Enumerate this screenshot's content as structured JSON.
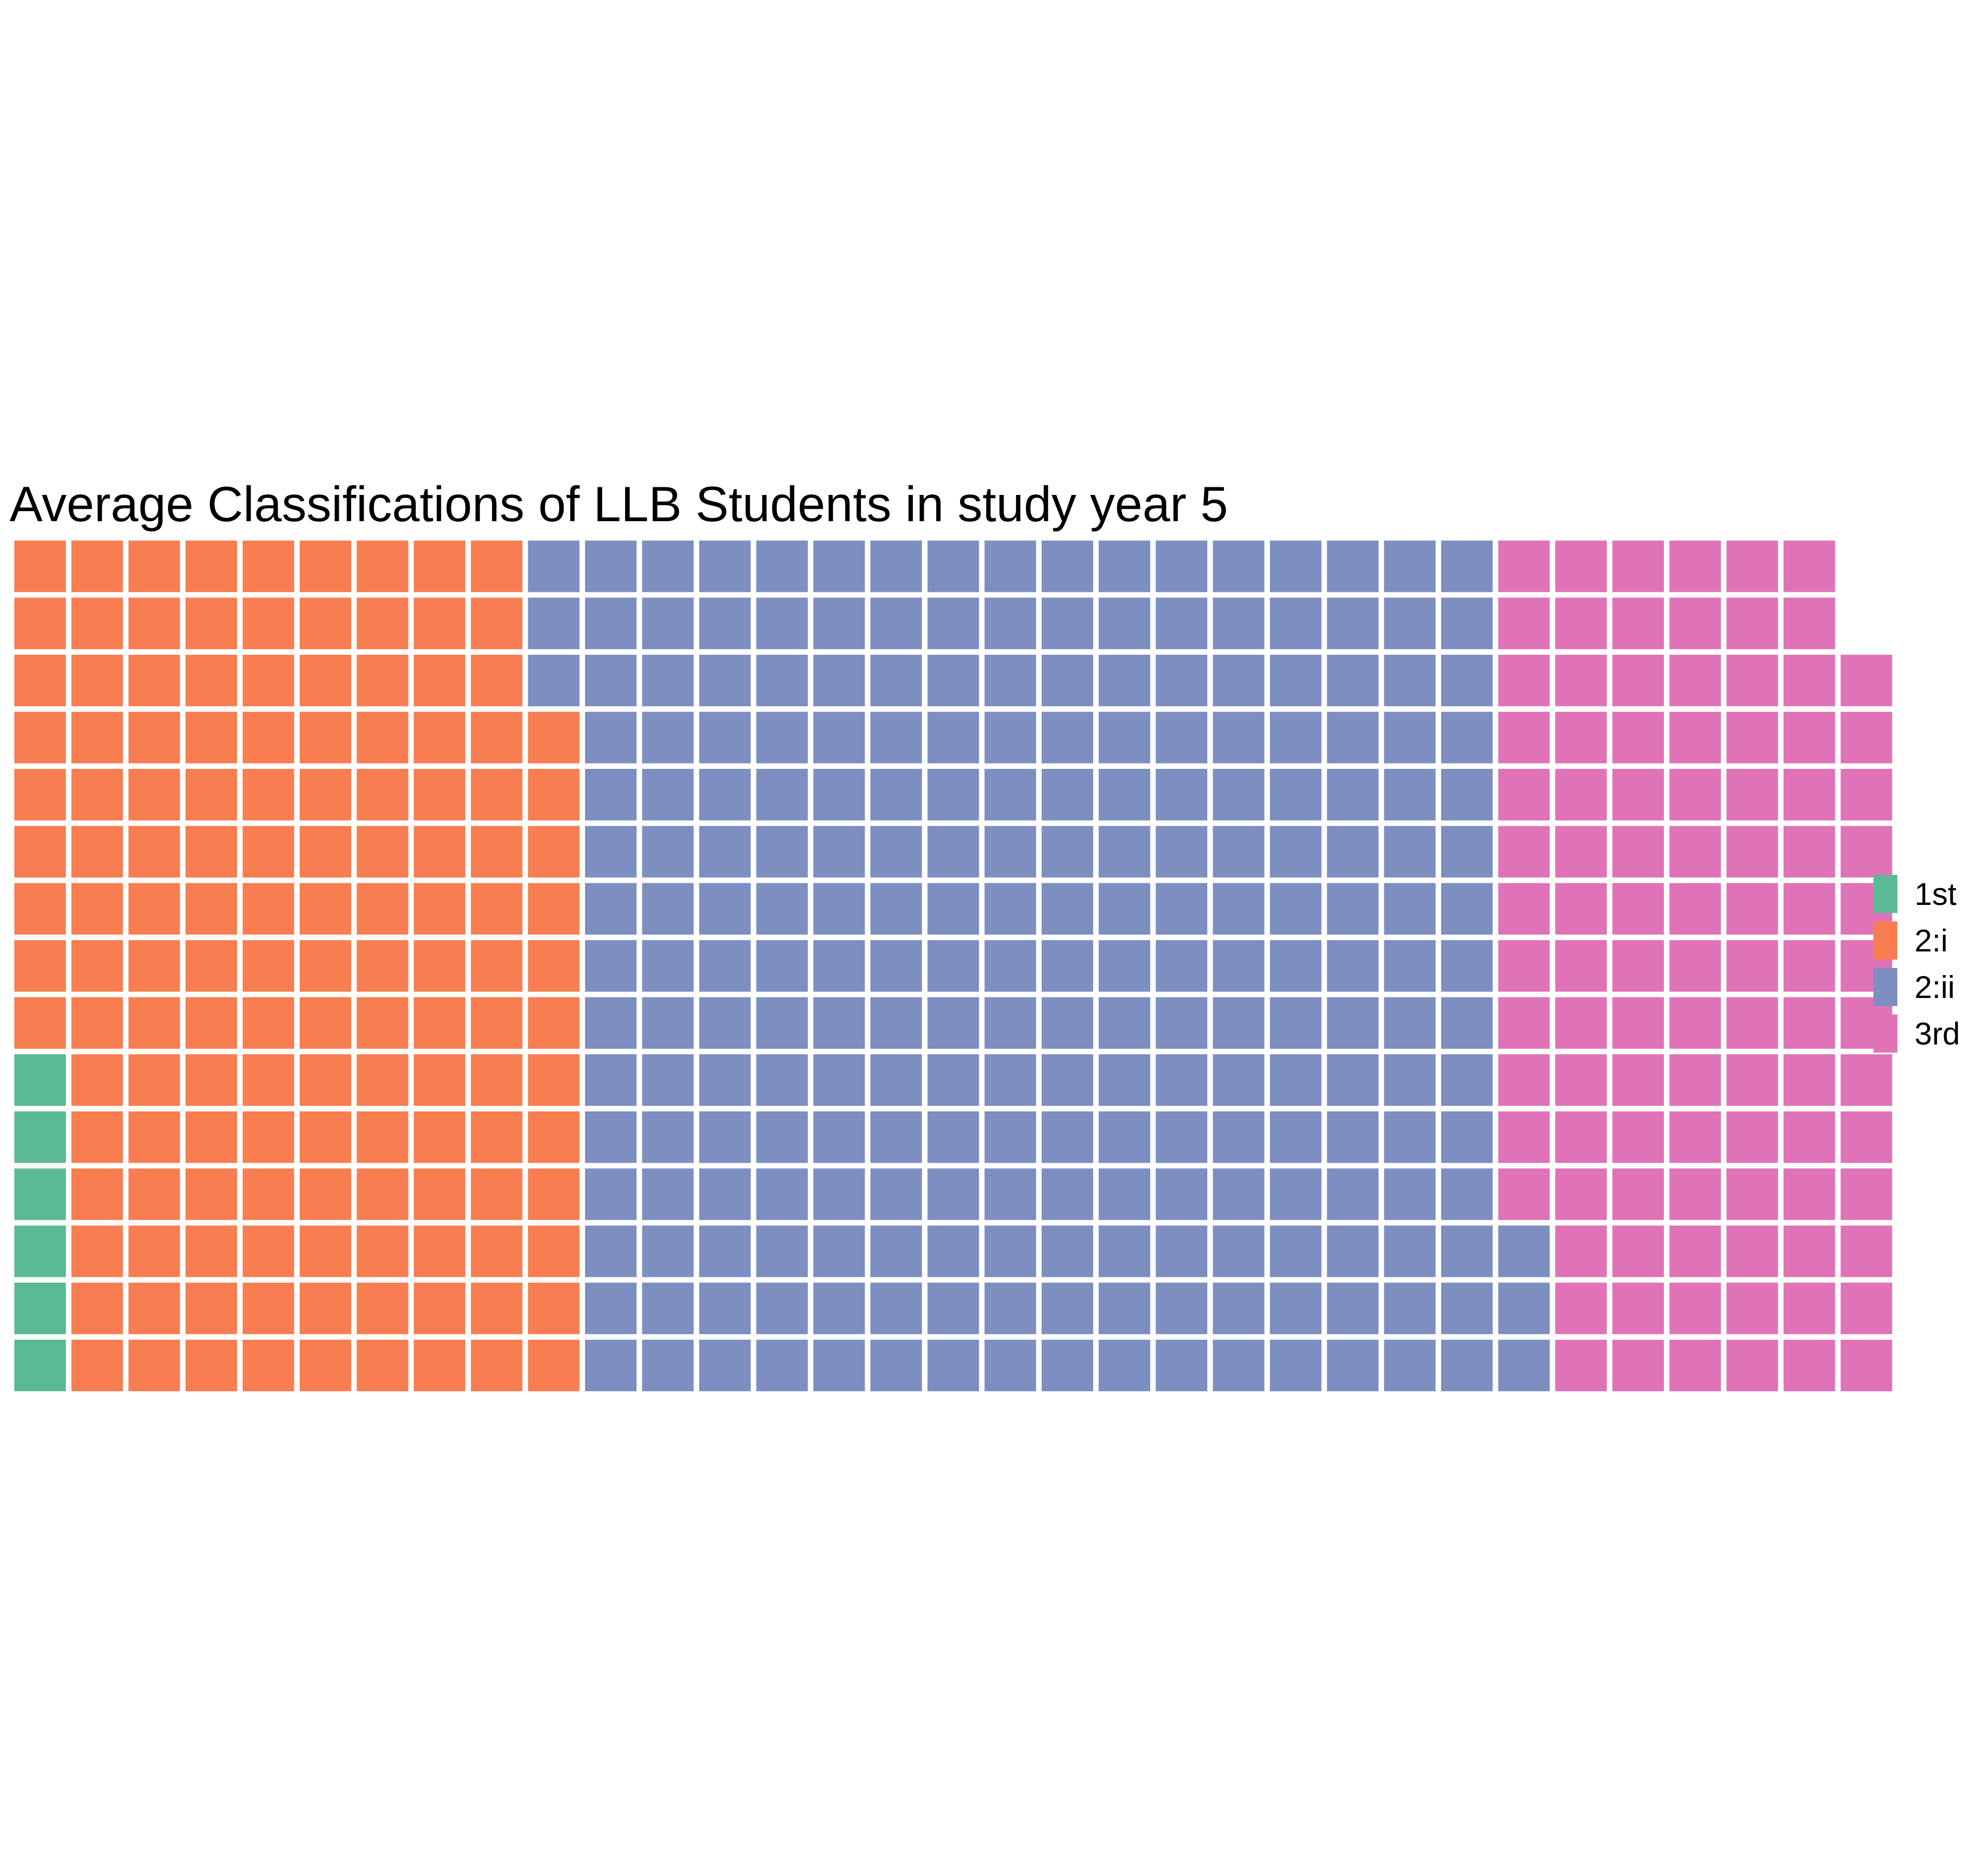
{
  "chart_data": {
    "type": "waffle",
    "title": "Average Classifications of LLB Students in study year 5",
    "rows": 15,
    "fill_order": "column-major, bottom-to-top, left-to-right",
    "series": [
      {
        "name": "1st",
        "value": 6,
        "color": "#5BBA93"
      },
      {
        "name": "2:i",
        "value": 141,
        "color": "#F87D51"
      },
      {
        "name": "2:ii",
        "value": 246,
        "color": "#7D8EC1"
      },
      {
        "name": "3rd",
        "value": 100,
        "color": "#E073B7"
      }
    ],
    "legend": {
      "position": "right",
      "entries": [
        "1st",
        "2:i",
        "2:ii",
        "3rd"
      ]
    }
  }
}
